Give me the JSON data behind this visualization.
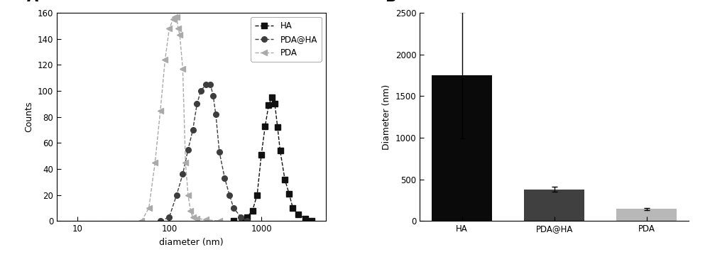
{
  "panel_A_label": "A",
  "panel_B_label": "B",
  "xlabel_A": "diameter (nm)",
  "ylabel_A": "Counts",
  "ylabel_B": "Diameter (nm)",
  "ylim_A": [
    0,
    160
  ],
  "ylim_B": [
    0,
    2500
  ],
  "yticks_A": [
    0,
    20,
    40,
    60,
    80,
    100,
    120,
    140,
    160
  ],
  "yticks_B": [
    0,
    500,
    1000,
    1500,
    2000,
    2500
  ],
  "xlim_A_log": [
    6,
    5000
  ],
  "legend_labels": [
    "HA",
    "PDA@HA",
    "PDA"
  ],
  "HA_x": [
    500,
    630,
    700,
    800,
    900,
    1000,
    1100,
    1200,
    1300,
    1400,
    1500,
    1600,
    1800,
    2000,
    2200,
    2500,
    3000,
    3500
  ],
  "HA_y": [
    0,
    1,
    3,
    8,
    20,
    51,
    73,
    89,
    95,
    90,
    72,
    54,
    32,
    21,
    10,
    5,
    2,
    0
  ],
  "PDA_HA_x": [
    80,
    100,
    120,
    140,
    160,
    180,
    200,
    220,
    250,
    280,
    300,
    320,
    350,
    400,
    450,
    500,
    600,
    700
  ],
  "PDA_HA_y": [
    0,
    3,
    20,
    36,
    55,
    70,
    90,
    100,
    105,
    105,
    96,
    82,
    53,
    33,
    20,
    10,
    3,
    0
  ],
  "PDA_x": [
    50,
    60,
    70,
    80,
    90,
    100,
    110,
    115,
    120,
    125,
    130,
    140,
    150,
    160,
    170,
    180,
    200,
    250,
    350
  ],
  "PDA_y": [
    0,
    10,
    45,
    85,
    124,
    148,
    155,
    157,
    157,
    148,
    143,
    117,
    45,
    20,
    8,
    3,
    2,
    1,
    0
  ],
  "bar_categories": [
    "HA",
    "PDA@HA",
    "PDA"
  ],
  "bar_values": [
    1750,
    380,
    145
  ],
  "bar_errors_up": [
    760,
    30,
    12
  ],
  "bar_errors_dn": [
    760,
    30,
    12
  ],
  "bar_colors": [
    "#0a0a0a",
    "#404040",
    "#b8b8b8"
  ],
  "background_color": "#ffffff",
  "line_color_HA": "#111111",
  "line_color_PDA_HA": "#3d3d3d",
  "line_color_PDA": "#aaaaaa",
  "marker_HA": "s",
  "marker_PDA_HA": "o",
  "marker_PDA": "<",
  "figsize": [
    10.0,
    3.62
  ],
  "dpi": 100
}
